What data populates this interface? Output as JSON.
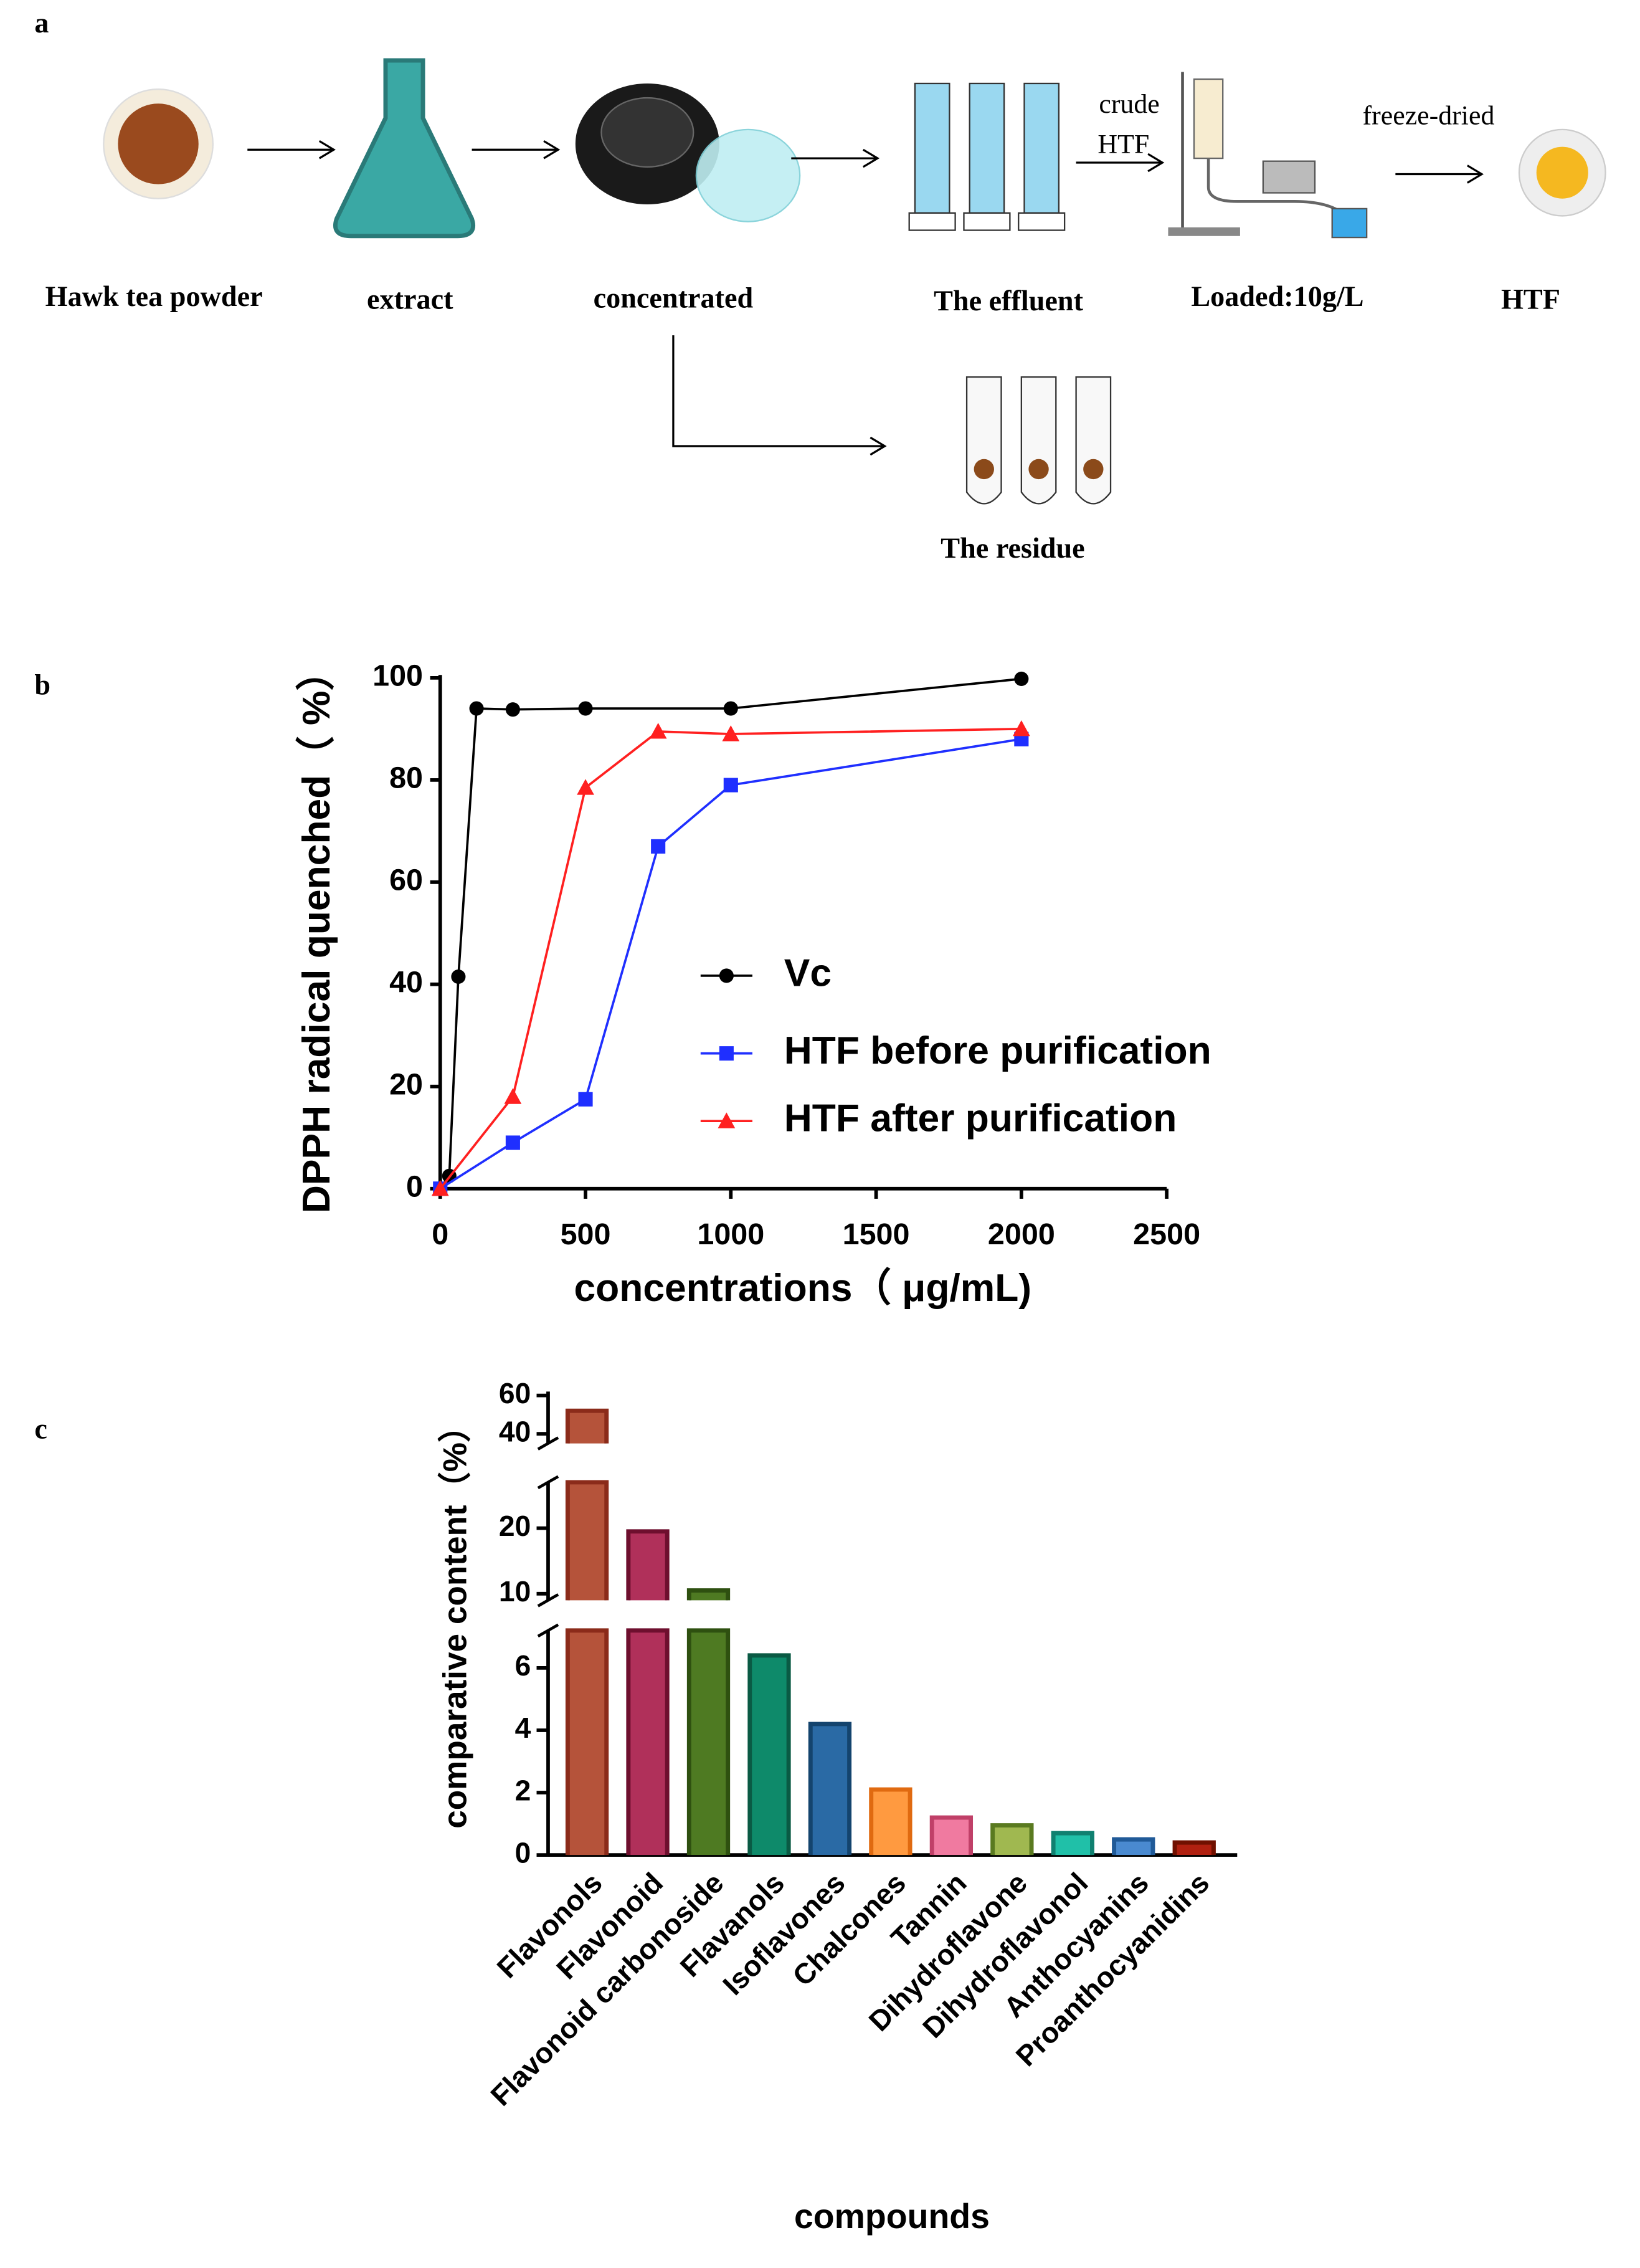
{
  "panel_labels": [
    "a",
    "b",
    "c"
  ],
  "diagram": {
    "steps": [
      "Hawk tea powder",
      "extract",
      "concentrated",
      "The effluent",
      "Loaded:10g/L",
      "HTF"
    ],
    "residue": "The residue",
    "crude_label": [
      "crude",
      "HTF"
    ],
    "freeze_label": "freeze-dried"
  },
  "chart_data": [
    {
      "type": "line",
      "xlabel": "concentrations（ μg/mL)",
      "ylabel": "DPPH radical quenched（ %）",
      "xlim": [
        0,
        2500
      ],
      "xticks": [
        0,
        500,
        1000,
        1500,
        2000,
        2500
      ],
      "ylim": [
        0,
        100
      ],
      "yticks": [
        0,
        20,
        40,
        60,
        80,
        100
      ],
      "series": [
        {
          "name": "Vc",
          "color": "#000000",
          "marker": "circle",
          "x": [
            0,
            31.25,
            62.5,
            125,
            250,
            500,
            1000,
            2000
          ],
          "values": [
            0,
            2.5,
            41.5,
            94,
            93.8,
            94,
            94,
            99.8
          ]
        },
        {
          "name": "HTF before purification",
          "color": "#1f2fff",
          "marker": "square",
          "x": [
            0,
            250,
            500,
            750,
            1000,
            2000
          ],
          "values": [
            0,
            9,
            17.5,
            67,
            79,
            88
          ]
        },
        {
          "name": "HTF after purification",
          "color": "#ff2020",
          "marker": "triangle",
          "x": [
            0,
            250,
            500,
            750,
            1000,
            2000
          ],
          "values": [
            0,
            18,
            78.5,
            89.5,
            89,
            90
          ]
        }
      ]
    },
    {
      "type": "bar",
      "xlabel": "compounds",
      "ylabel": "comparative content（%）",
      "categories": [
        "Flavonols",
        "Flavonoid",
        "Flavonoid carbonoside",
        "Flavanols",
        "Isoflavones",
        "Chalcones",
        "Tannin",
        "Dihydroflavone",
        "Dihydroflavonol",
        "Anthocyanins",
        "Proanthocyanidins"
      ],
      "values": [
        52,
        19.5,
        10.5,
        6.4,
        4.2,
        2.1,
        1.2,
        0.95,
        0.7,
        0.5,
        0.4
      ],
      "colors": [
        "#b5533a",
        "#b0305a",
        "#4e7a22",
        "#0e8a6a",
        "#2a6aa5",
        "#ff9a40",
        "#f07aa0",
        "#a0b850",
        "#20c0a8",
        "#4a8ad0",
        "#b02010"
      ],
      "edge_colors": [
        "#8b2b1a",
        "#6e0f2e",
        "#2e5010",
        "#0a5a44",
        "#14446e",
        "#e06a10",
        "#c04068",
        "#5a7a20",
        "#108070",
        "#205a98",
        "#701000"
      ],
      "ylim": [
        0,
        62
      ],
      "y_segments": [
        {
          "ylim": [
            0,
            7.2
          ],
          "yticks": [
            0,
            2,
            4,
            6
          ]
        },
        {
          "ylim": [
            9,
            27
          ],
          "yticks": [
            10,
            20
          ]
        },
        {
          "ylim": [
            35,
            62
          ],
          "yticks": [
            40,
            60
          ]
        }
      ]
    }
  ]
}
